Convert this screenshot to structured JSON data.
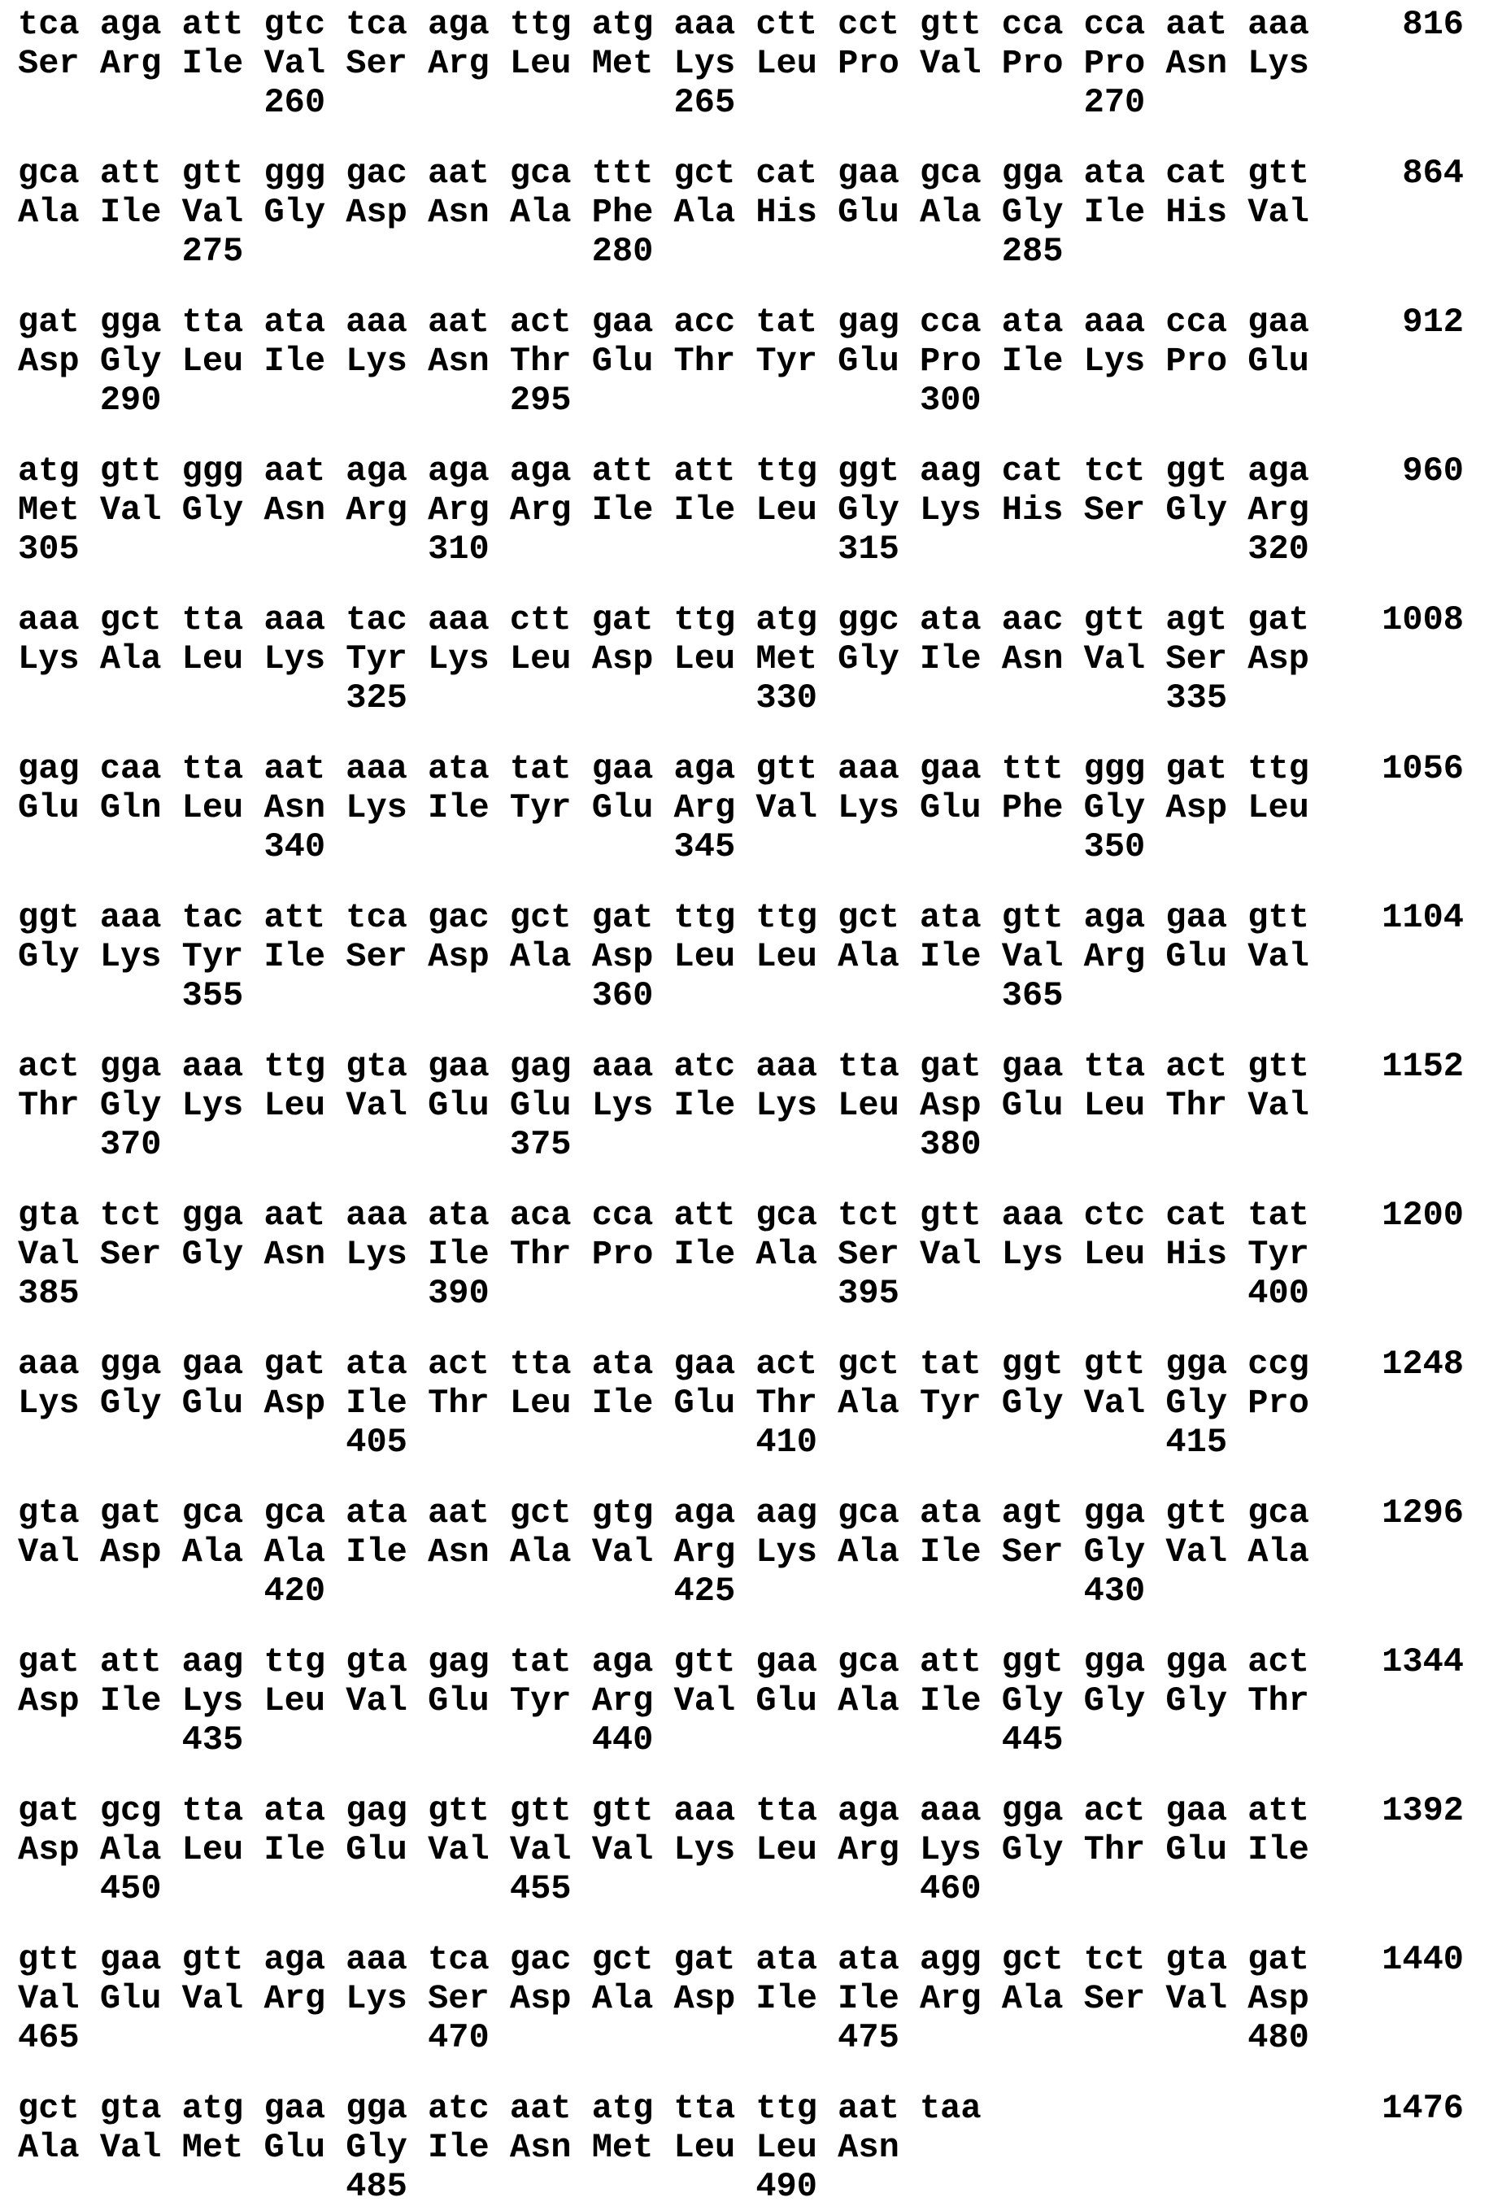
{
  "blocks": [
    {
      "dna": "tca aga att gtc tca aga ttg atg aaa ctt cct gtt cca cca aat aaa",
      "aa": "Ser Arg Ile Val Ser Arg Leu Met Lys Leu Pro Val Pro Pro Asn Lys",
      "markers": [
        {
          "label": "260",
          "codon": 4
        },
        {
          "label": "265",
          "codon": 9
        },
        {
          "label": "270",
          "codon": 14
        }
      ],
      "end_count": "816"
    },
    {
      "dna": "gca att gtt ggg gac aat gca ttt gct cat gaa gca gga ata cat gtt",
      "aa": "Ala Ile Val Gly Asp Asn Ala Phe Ala His Glu Ala Gly Ile His Val",
      "markers": [
        {
          "label": "275",
          "codon": 3
        },
        {
          "label": "280",
          "codon": 8
        },
        {
          "label": "285",
          "codon": 13
        }
      ],
      "end_count": "864"
    },
    {
      "dna": "gat gga tta ata aaa aat act gaa acc tat gag cca ata aaa cca gaa",
      "aa": "Asp Gly Leu Ile Lys Asn Thr Glu Thr Tyr Glu Pro Ile Lys Pro Glu",
      "markers": [
        {
          "label": "290",
          "codon": 2
        },
        {
          "label": "295",
          "codon": 7
        },
        {
          "label": "300",
          "codon": 12
        }
      ],
      "end_count": "912"
    },
    {
      "dna": "atg gtt ggg aat aga aga aga att att ttg ggt aag cat tct ggt aga",
      "aa": "Met Val Gly Asn Arg Arg Arg Ile Ile Leu Gly Lys His Ser Gly Arg",
      "markers": [
        {
          "label": "305",
          "codon": 1
        },
        {
          "label": "310",
          "codon": 6
        },
        {
          "label": "315",
          "codon": 11
        },
        {
          "label": "320",
          "codon": 16
        }
      ],
      "end_count": "960"
    },
    {
      "dna": "aaa gct tta aaa tac aaa ctt gat ttg atg ggc ata aac gtt agt gat",
      "aa": "Lys Ala Leu Lys Tyr Lys Leu Asp Leu Met Gly Ile Asn Val Ser Asp",
      "markers": [
        {
          "label": "325",
          "codon": 5
        },
        {
          "label": "330",
          "codon": 10
        },
        {
          "label": "335",
          "codon": 15
        }
      ],
      "end_count": "1008"
    },
    {
      "dna": "gag caa tta aat aaa ata tat gaa aga gtt aaa gaa ttt ggg gat ttg",
      "aa": "Glu Gln Leu Asn Lys Ile Tyr Glu Arg Val Lys Glu Phe Gly Asp Leu",
      "markers": [
        {
          "label": "340",
          "codon": 4
        },
        {
          "label": "345",
          "codon": 9
        },
        {
          "label": "350",
          "codon": 14
        }
      ],
      "end_count": "1056"
    },
    {
      "dna": "ggt aaa tac att tca gac gct gat ttg ttg gct ata gtt aga gaa gtt",
      "aa": "Gly Lys Tyr Ile Ser Asp Ala Asp Leu Leu Ala Ile Val Arg Glu Val",
      "markers": [
        {
          "label": "355",
          "codon": 3
        },
        {
          "label": "360",
          "codon": 8
        },
        {
          "label": "365",
          "codon": 13
        }
      ],
      "end_count": "1104"
    },
    {
      "dna": "act gga aaa ttg gta gaa gag aaa atc aaa tta gat gaa tta act gtt",
      "aa": "Thr Gly Lys Leu Val Glu Glu Lys Ile Lys Leu Asp Glu Leu Thr Val",
      "markers": [
        {
          "label": "370",
          "codon": 2
        },
        {
          "label": "375",
          "codon": 7
        },
        {
          "label": "380",
          "codon": 12
        }
      ],
      "end_count": "1152"
    },
    {
      "dna": "gta tct gga aat aaa ata aca cca att gca tct gtt aaa ctc cat tat",
      "aa": "Val Ser Gly Asn Lys Ile Thr Pro Ile Ala Ser Val Lys Leu His Tyr",
      "markers": [
        {
          "label": "385",
          "codon": 1
        },
        {
          "label": "390",
          "codon": 6
        },
        {
          "label": "395",
          "codon": 11
        },
        {
          "label": "400",
          "codon": 16
        }
      ],
      "end_count": "1200"
    },
    {
      "dna": "aaa gga gaa gat ata act tta ata gaa act gct tat ggt gtt gga ccg",
      "aa": "Lys Gly Glu Asp Ile Thr Leu Ile Glu Thr Ala Tyr Gly Val Gly Pro",
      "markers": [
        {
          "label": "405",
          "codon": 5
        },
        {
          "label": "410",
          "codon": 10
        },
        {
          "label": "415",
          "codon": 15
        }
      ],
      "end_count": "1248"
    },
    {
      "dna": "gta gat gca gca ata aat gct gtg aga aag gca ata agt gga gtt gca",
      "aa": "Val Asp Ala Ala Ile Asn Ala Val Arg Lys Ala Ile Ser Gly Val Ala",
      "markers": [
        {
          "label": "420",
          "codon": 4
        },
        {
          "label": "425",
          "codon": 9
        },
        {
          "label": "430",
          "codon": 14
        }
      ],
      "end_count": "1296"
    },
    {
      "dna": "gat att aag ttg gta gag tat aga gtt gaa gca att ggt gga gga act",
      "aa": "Asp Ile Lys Leu Val Glu Tyr Arg Val Glu Ala Ile Gly Gly Gly Thr",
      "markers": [
        {
          "label": "435",
          "codon": 3
        },
        {
          "label": "440",
          "codon": 8
        },
        {
          "label": "445",
          "codon": 13
        }
      ],
      "end_count": "1344"
    },
    {
      "dna": "gat gcg tta ata gag gtt gtt gtt aaa tta aga aaa gga act gaa att",
      "aa": "Asp Ala Leu Ile Glu Val Val Val Lys Leu Arg Lys Gly Thr Glu Ile",
      "markers": [
        {
          "label": "450",
          "codon": 2
        },
        {
          "label": "455",
          "codon": 7
        },
        {
          "label": "460",
          "codon": 12
        }
      ],
      "end_count": "1392"
    },
    {
      "dna": "gtt gaa gtt aga aaa tca gac gct gat ata ata agg gct tct gta gat",
      "aa": "Val Glu Val Arg Lys Ser Asp Ala Asp Ile Ile Arg Ala Ser Val Asp",
      "markers": [
        {
          "label": "465",
          "codon": 1
        },
        {
          "label": "470",
          "codon": 6
        },
        {
          "label": "475",
          "codon": 11
        },
        {
          "label": "480",
          "codon": 16
        }
      ],
      "end_count": "1440"
    },
    {
      "dna": "gct gta atg gaa gga atc aat atg tta ttg aat taa",
      "aa": "Ala Val Met Glu Gly Ile Asn Met Leu Leu Asn",
      "markers": [
        {
          "label": "485",
          "codon": 5
        },
        {
          "label": "490",
          "codon": 10
        }
      ],
      "end_count": "1476"
    }
  ]
}
